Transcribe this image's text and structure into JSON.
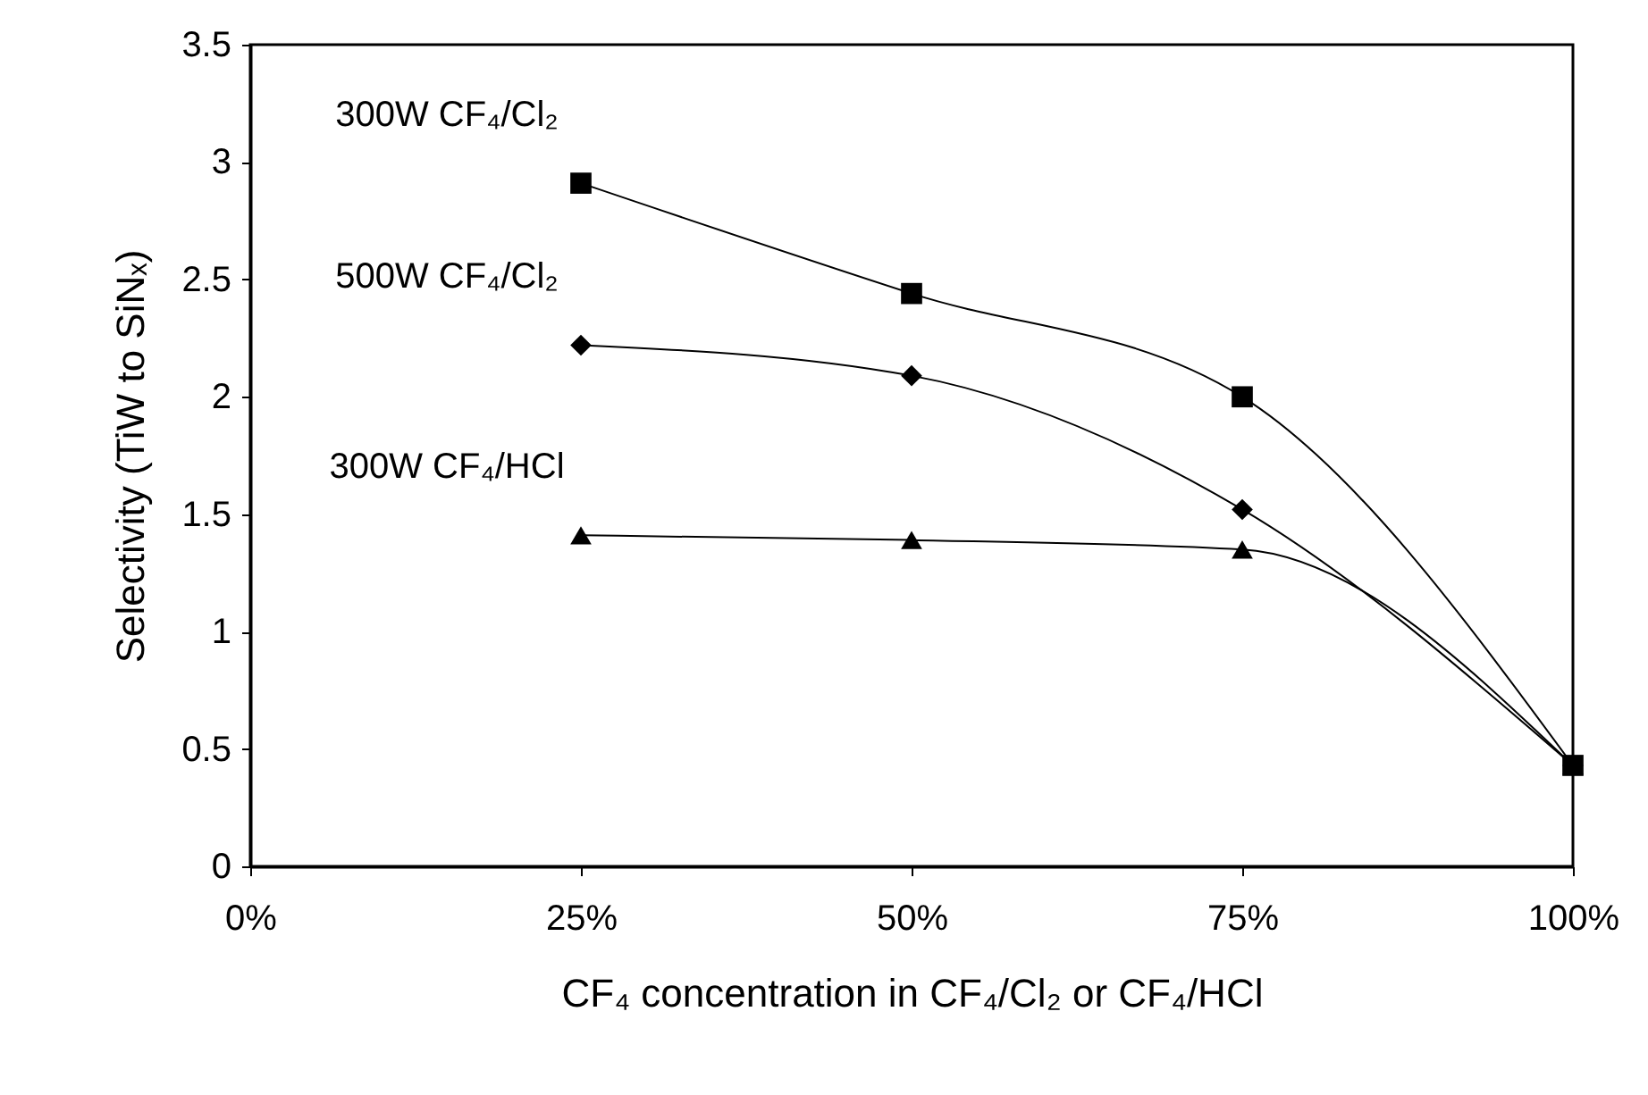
{
  "chart_data": {
    "type": "line",
    "xlabel": "CF₄ concentration in CF₄/Cl₂ or CF₄/HCl",
    "ylabel": "Selectivity (TiW to SiNₓ)",
    "x": [
      25,
      50,
      75,
      100
    ],
    "xlim": [
      0,
      100
    ],
    "xticks": [
      {
        "value": 0,
        "label": "0%"
      },
      {
        "value": 25,
        "label": "25%"
      },
      {
        "value": 50,
        "label": "50%"
      },
      {
        "value": 75,
        "label": "75%"
      },
      {
        "value": 100,
        "label": "100%"
      }
    ],
    "ylim": [
      0,
      3.5
    ],
    "yticks": [
      0,
      0.5,
      1,
      1.5,
      2,
      2.5,
      3,
      3.5
    ],
    "series": [
      {
        "name": "300W CF₄/Cl₂",
        "color": "#000000",
        "marker": "square",
        "values": [
          2.91,
          2.44,
          2.0,
          0.43
        ]
      },
      {
        "name": "500W CF₄/Cl₂",
        "color": "#000000",
        "marker": "diamond",
        "values": [
          2.22,
          2.09,
          1.52,
          0.43
        ]
      },
      {
        "name": "300W CF₄/HCl",
        "color": "#000000",
        "marker": "triangle",
        "values": [
          1.41,
          1.39,
          1.35,
          0.43
        ]
      }
    ],
    "grid": false
  }
}
